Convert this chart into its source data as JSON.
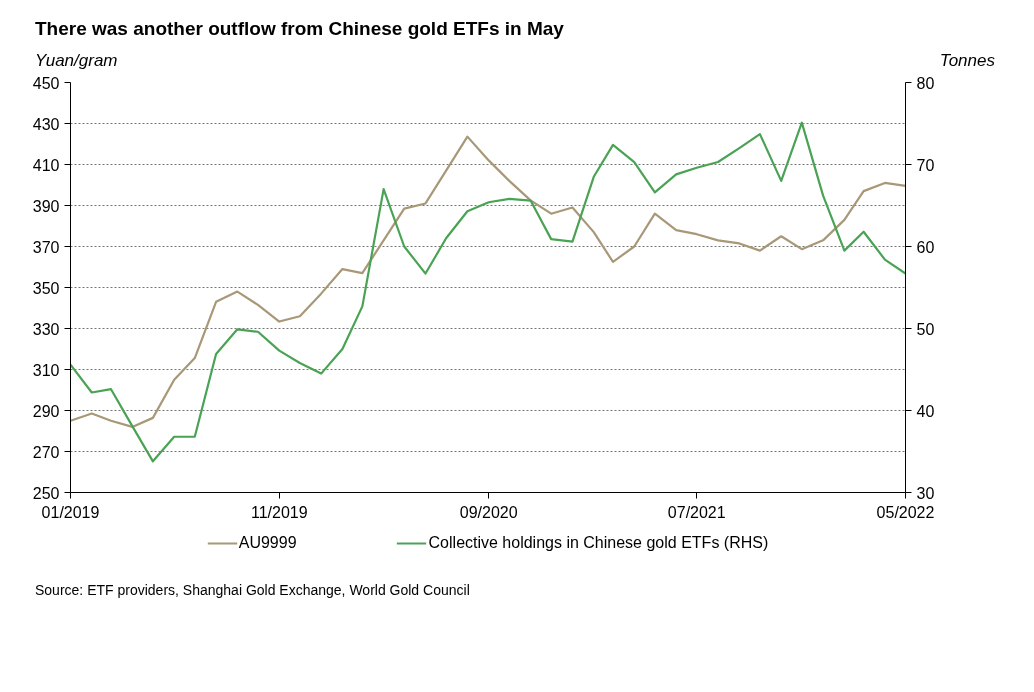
{
  "chart_data": {
    "type": "line",
    "title": "There was another outflow from Chinese gold ETFs in May",
    "ylabel": "Yuan/gram",
    "y2label": "Tonnes",
    "x": [
      "2019-01",
      "2019-02",
      "2019-03",
      "2019-04",
      "2019-05",
      "2019-06",
      "2019-07",
      "2019-08",
      "2019-09",
      "2019-10",
      "2019-11",
      "2019-12",
      "2020-01",
      "2020-02",
      "2020-03",
      "2020-04",
      "2020-05",
      "2020-06",
      "2020-07",
      "2020-08",
      "2020-09",
      "2020-10",
      "2020-11",
      "2020-12",
      "2021-01",
      "2021-02",
      "2021-03",
      "2021-04",
      "2021-05",
      "2021-06",
      "2021-07",
      "2021-08",
      "2021-09",
      "2021-10",
      "2021-11",
      "2021-12",
      "2022-01",
      "2022-02",
      "2022-03",
      "2022-04",
      "2022-05"
    ],
    "series": [
      {
        "name": "AU9999",
        "color": "#a89877",
        "values": [
          285,
          288.5,
          285,
          282,
          286.4,
          305,
          315.6,
          343,
          348,
          341.5,
          333.4,
          336,
          347,
          359,
          357,
          373,
          388.5,
          391,
          407,
          423.6,
          412,
          402,
          392.5,
          386,
          389,
          377,
          362.5,
          370,
          386,
          378,
          376,
          373,
          371.5,
          368,
          375,
          368.7,
          373,
          383,
          397,
          401,
          399.6
        ]
      },
      {
        "name": "Collective holdings in Chinese gold ETFs (RHS)",
        "color": "#4aa354",
        "axis": "y2",
        "values": [
          45.6,
          42.2,
          42.6,
          38.1,
          33.8,
          36.8,
          36.8,
          46.9,
          49.9,
          49.6,
          47.3,
          45.8,
          44.5,
          47.5,
          52.7,
          67.0,
          60.0,
          56.7,
          61.0,
          64.3,
          65.4,
          65.8,
          65.6,
          60.9,
          60.6,
          68.5,
          72.4,
          70.3,
          66.6,
          68.8,
          69.6,
          70.3,
          72.0,
          73.7,
          68.0,
          75.1,
          66.2,
          59.5,
          61.8,
          58.4,
          56.7
        ]
      }
    ],
    "xlim": [
      "2019-01",
      "2022-05"
    ],
    "xticks": [
      {
        "value": "2019-01",
        "label": "01/2019"
      },
      {
        "value": "2019-11",
        "label": "11/2019"
      },
      {
        "value": "2020-09",
        "label": "09/2020"
      },
      {
        "value": "2021-07",
        "label": "07/2021"
      },
      {
        "value": "2022-05",
        "label": "05/2022"
      }
    ],
    "ylim": [
      250,
      450
    ],
    "yticks": [
      250,
      270,
      290,
      310,
      330,
      350,
      370,
      390,
      410,
      430,
      450
    ],
    "y2lim": [
      30,
      80
    ],
    "y2ticks": [
      30,
      40,
      50,
      60,
      70,
      80
    ],
    "grid": "y",
    "legend": "bottom",
    "line_style": "solid",
    "annotations": [
      "Source: ETF providers, Shanghai Gold Exchange, World Gold Council"
    ]
  }
}
